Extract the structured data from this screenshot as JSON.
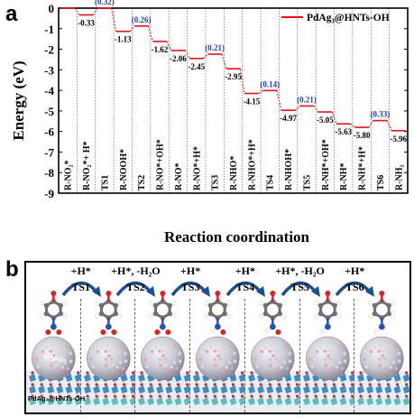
{
  "panel_a_label": "a",
  "panel_b_label": "b",
  "chart_data": {
    "type": "line",
    "title": "",
    "xlabel": "Reaction coordination",
    "ylabel": "Energy (eV)",
    "ylim": [
      -9,
      0
    ],
    "yticks": [
      0,
      -1,
      -2,
      -3,
      -4,
      -5,
      -6,
      -7,
      -8,
      -9
    ],
    "grid": "vertical dotted",
    "legend_position": "top-right",
    "series": [
      {
        "name": "PdAg₃@HNTs-OH",
        "color": "#e8101a",
        "points": [
          {
            "x": "R-NO₂*",
            "y": 0
          },
          {
            "x": "R-NO₂*+ H*",
            "y": -0.33
          },
          {
            "x": "TS1",
            "y": -0.01
          },
          {
            "x": "R-NOOH*",
            "y": -1.13
          },
          {
            "x": "TS2",
            "y": -0.87
          },
          {
            "x": "R-NO*+OH*",
            "y": -1.62
          },
          {
            "x": "R-NO*",
            "y": -2.06
          },
          {
            "x": "R-NO*+H*",
            "y": -2.45
          },
          {
            "x": "TS3",
            "y": -2.24
          },
          {
            "x": "R-NHO*",
            "y": -2.95
          },
          {
            "x": "R-NHO*+H*",
            "y": -4.15
          },
          {
            "x": "TS4",
            "y": -4.01
          },
          {
            "x": "R-NHOH*",
            "y": -4.97
          },
          {
            "x": "TS5",
            "y": -4.76
          },
          {
            "x": "R-NH*+OH*",
            "y": -5.05
          },
          {
            "x": "R-NH*",
            "y": -5.63
          },
          {
            "x": "R-NH*+H*",
            "y": -5.8
          },
          {
            "x": "TS6",
            "y": -5.47
          },
          {
            "x": "R-NH₂",
            "y": -5.96
          }
        ]
      }
    ],
    "energy_labels": [
      "-0.33",
      "-1.13",
      "-1.62",
      "-2.06",
      "-2.45",
      "-2.95",
      "-4.15",
      "-4.97",
      "-5.05",
      "-5.63",
      "-5.80",
      "-5.96"
    ],
    "barrier_labels": [
      "(0.32)",
      "(0.26)",
      "(0.21)",
      "(0.14)",
      "(0.21)",
      "(0.33)"
    ],
    "barrier_color": "#1a3fb0"
  },
  "panel_b": {
    "steps": [
      {
        "above": "+H*",
        "ts": "TS1"
      },
      {
        "above": "+H*, -H₂O",
        "ts": "TS2"
      },
      {
        "above": "+H*",
        "ts": "TS3"
      },
      {
        "above": "+H*",
        "ts": "TS4"
      },
      {
        "above": "+H*, -H₂O",
        "ts": "TS5"
      },
      {
        "above": "+H*",
        "ts": "TS6"
      }
    ],
    "particle_tag": "PdAg₃",
    "support_tag": "PdAg₃@HNTs-OH",
    "arrow_color": "#1c4f8f"
  }
}
